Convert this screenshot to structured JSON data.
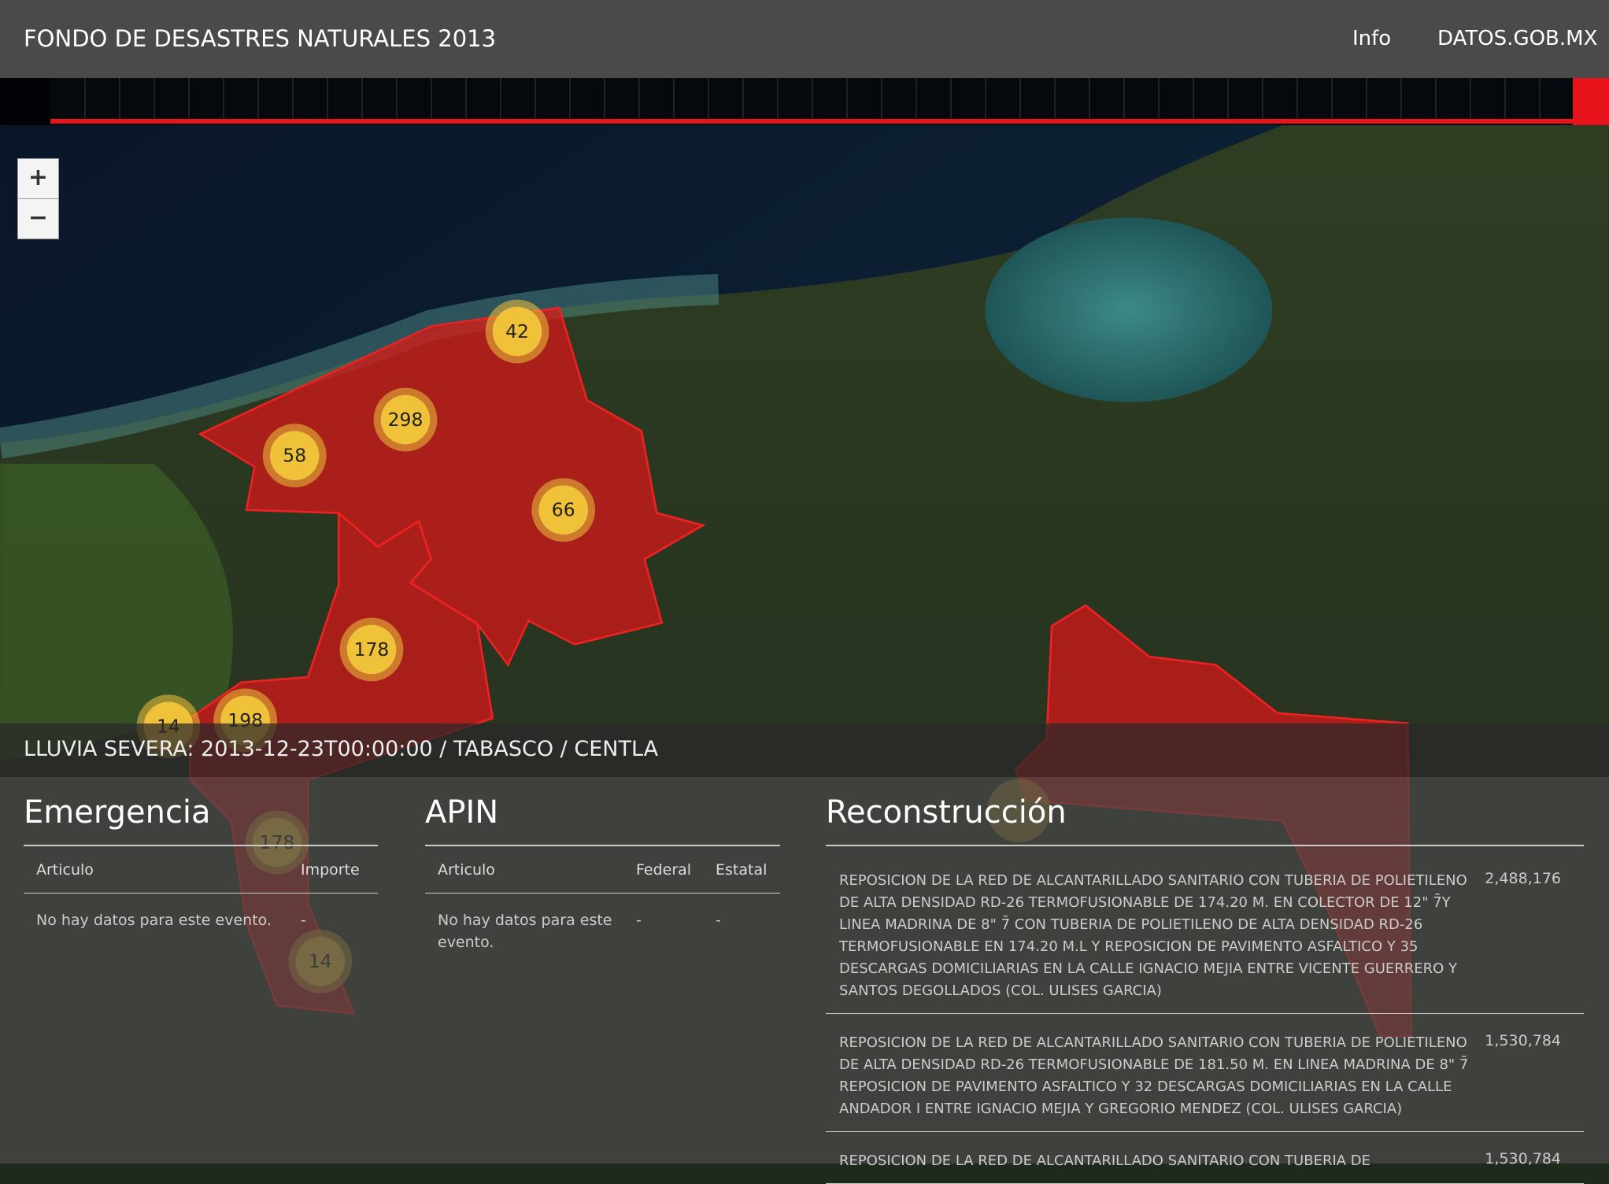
{
  "header": {
    "title": "FONDO DE DESASTRES NATURALES 2013",
    "nav": [
      "Info",
      "DATOS.GOB.MX"
    ]
  },
  "zoom": {
    "in": "+",
    "out": "−"
  },
  "map": {
    "clusters": [
      42,
      298,
      58,
      66,
      178,
      14,
      198,
      178,
      14
    ]
  },
  "event": "LLUVIA SEVERA: 2013-12-23T00:00:00 / TABASCO / CENTLA",
  "emergencia": {
    "title": "Emergencia",
    "columns": [
      "Articulo",
      "Importe"
    ],
    "empty": "No hay datos para este evento.",
    "dash": "-"
  },
  "apin": {
    "title": "APIN",
    "columns": [
      "Articulo",
      "Federal",
      "Estatal"
    ],
    "empty": "No hay datos para este evento.",
    "dashes": [
      "-",
      "-"
    ]
  },
  "reconstruccion": {
    "title": "Reconstrucción",
    "rows": [
      {
        "text": "REPOSICION DE LA RED DE ALCANTARILLADO SANITARIO CON TUBERIA DE POLIETILENO DE ALTA DENSIDAD RD-26 TERMOFUSIONABLE DE 174.20 M. EN COLECTOR DE 12\" 7̄Y LINEA MADRINA DE 8\" 7̄ CON TUBERIA DE POLIETILENO DE ALTA DENSIDAD RD-26 TERMOFUSIONABLE EN 174.20 M.L Y REPOSICION DE PAVIMENTO ASFALTICO Y 35 DESCARGAS DOMICILIARIAS EN LA CALLE IGNACIO MEJIA ENTRE VICENTE GUERRERO Y SANTOS DEGOLLADOS (COL. ULISES GARCIA)",
        "amount": "2,488,176"
      },
      {
        "text": "REPOSICION DE LA RED DE ALCANTARILLADO SANITARIO CON TUBERIA DE POLIETILENO DE ALTA DENSIDAD RD-26 TERMOFUSIONABLE DE 181.50 M. EN LINEA MADRINA DE 8\" 7̄ REPOSICION DE PAVIMENTO ASFALTICO Y 32 DESCARGAS DOMICILIARIAS EN LA CALLE ANDADOR I ENTRE IGNACIO MEJIA Y GREGORIO MENDEZ (COL. ULISES GARCIA)",
        "amount": "1,530,784"
      },
      {
        "text": "REPOSICION DE LA RED DE ALCANTARILLADO SANITARIO CON TUBERIA DE",
        "amount": "1,530,784"
      }
    ]
  }
}
